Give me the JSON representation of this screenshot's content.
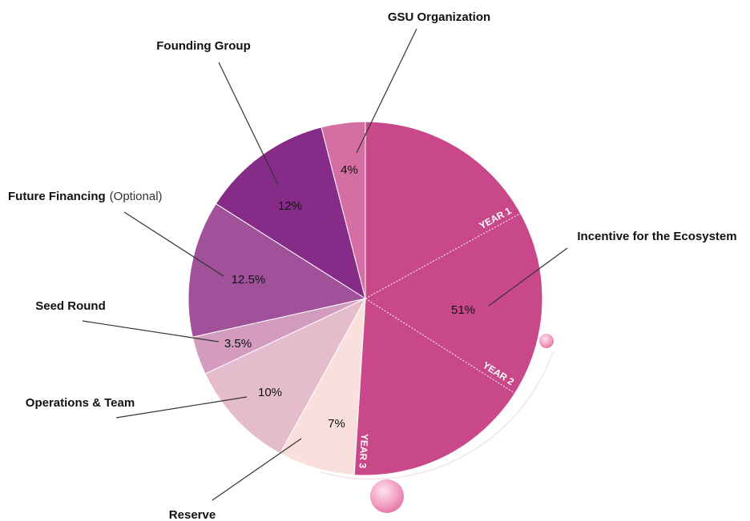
{
  "chart_data": {
    "type": "pie",
    "categories": [
      "Incentive for the Ecosystem",
      "Reserve",
      "Operations & Team",
      "Seed Round",
      "Future Financing",
      "Founding Group",
      "GSU Organization"
    ],
    "category_notes": [
      null,
      null,
      null,
      null,
      "(Optional)",
      null,
      null
    ],
    "values": [
      51,
      7,
      10,
      3.5,
      12.5,
      12,
      4
    ],
    "value_labels": [
      "51%",
      "7%",
      "10%",
      "3.5%",
      "12.5%",
      "12%",
      "4%"
    ],
    "colors": [
      "#c9488a",
      "#f9e0dd",
      "#e4bccb",
      "#d39bbe",
      "#a1519a",
      "#862c88",
      "#d56fa3"
    ],
    "sublabels": [
      "YEAR 1",
      "YEAR 2",
      "YEAR 3"
    ]
  }
}
